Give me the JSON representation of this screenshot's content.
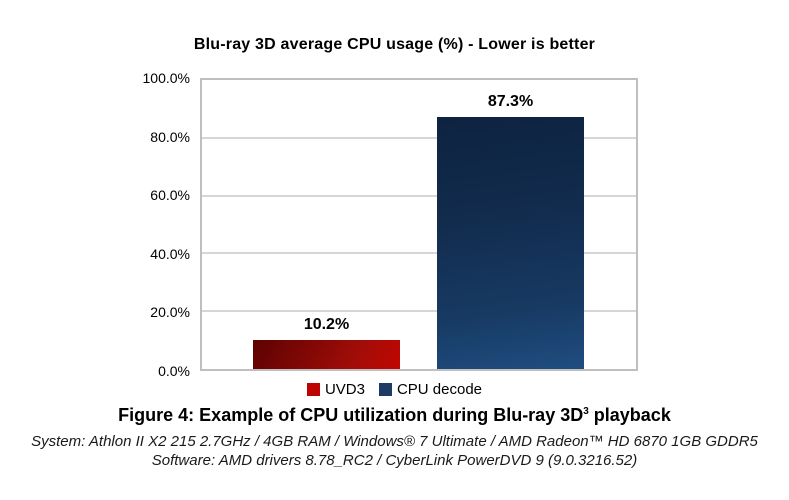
{
  "chart_data": {
    "type": "bar",
    "title": "Blu-ray 3D average CPU usage (%) - Lower is better",
    "categories": [
      "UVD3",
      "CPU decode"
    ],
    "values": [
      10.2,
      87.3
    ],
    "value_labels": [
      "10.2%",
      "87.3%"
    ],
    "xlabel": "",
    "ylabel": "",
    "ylim": [
      0,
      100
    ],
    "ytick_labels": [
      "0.0%",
      "20.0%",
      "40.0%",
      "60.0%",
      "80.0%",
      "100.0%"
    ],
    "grid": true,
    "legend_position": "bottom",
    "bar_colors": [
      "#c00500",
      "#1c3c66"
    ]
  },
  "legend": {
    "items": [
      {
        "label": "UVD3",
        "color": "#be0300"
      },
      {
        "label": "CPU decode",
        "color": "#1c3c66"
      }
    ]
  },
  "caption": {
    "prefix": "Figure 4: Example of CPU utilization during Blu-ray 3D",
    "superscript": "3",
    "suffix": " playback"
  },
  "footnotes": {
    "system": "System: Athlon II X2 215 2.7GHz / 4GB RAM / Windows® 7 Ultimate / AMD Radeon™ HD 6870 1GB GDDR5",
    "software": "Software: AMD drivers 8.78_RC2 / CyberLink PowerDVD 9 (9.0.3216.52)"
  },
  "colors": {
    "plot_border": "#bfbfbf",
    "gridline": "#d6d6d6",
    "background": "#ffffff"
  }
}
